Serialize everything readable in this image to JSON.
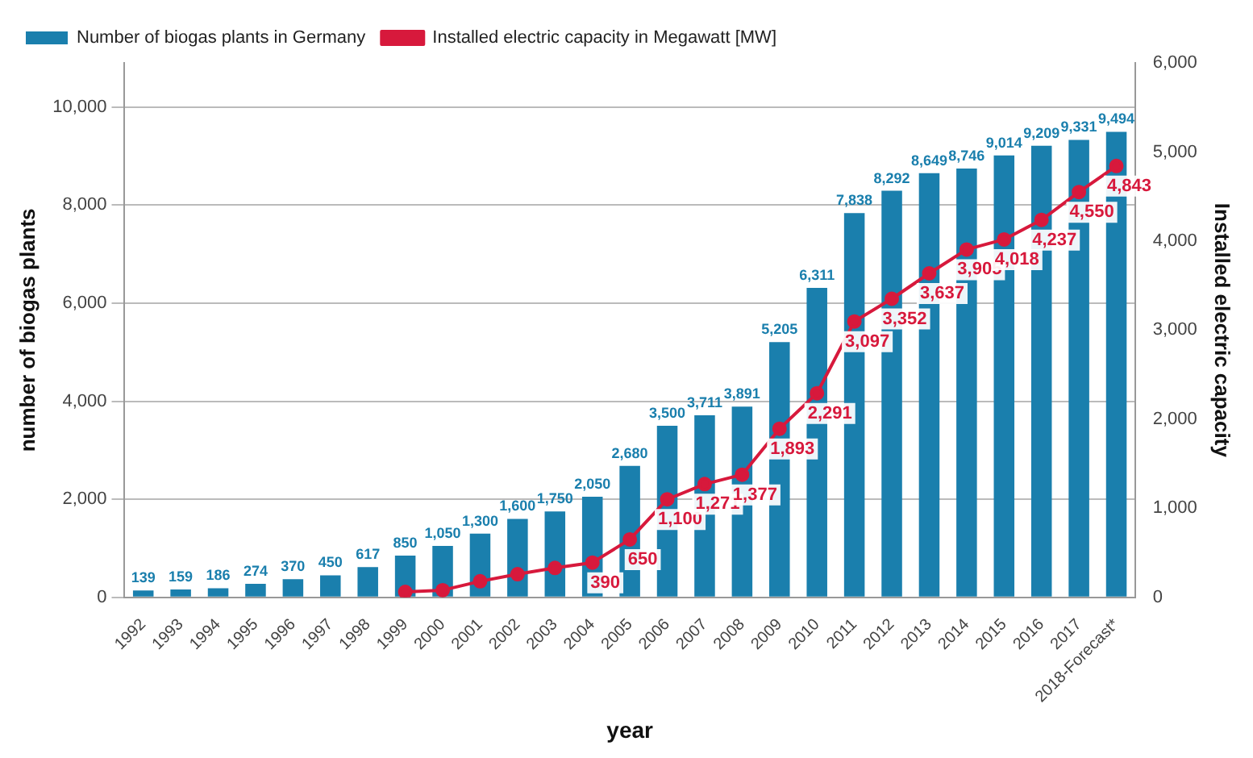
{
  "chart_data": {
    "type": "bar",
    "xlabel": "year",
    "ylabel": "number of biogas plants",
    "y2label": "Installed electric capacity",
    "categories": [
      "1992",
      "1993",
      "1994",
      "1995",
      "1996",
      "1997",
      "1998",
      "1999",
      "2000",
      "2001",
      "2002",
      "2003",
      "2004",
      "2005",
      "2006",
      "2007",
      "2008",
      "2009",
      "2010",
      "2011",
      "2012",
      "2013",
      "2014",
      "2015",
      "2016",
      "2017",
      "2018-Forecast*"
    ],
    "series": [
      {
        "name": "Number of biogas plants in Germany",
        "color": "#1a7fad",
        "values": [
          139,
          159,
          186,
          274,
          370,
          450,
          617,
          850,
          1050,
          1300,
          1600,
          1750,
          2050,
          2680,
          3500,
          3711,
          3891,
          5205,
          6311,
          7838,
          8292,
          8649,
          8746,
          9014,
          9209,
          9331,
          9494
        ],
        "value_labels": [
          "139",
          "159",
          "186",
          "274",
          "370",
          "450",
          "617",
          "850",
          "1,050",
          "1,300",
          "1,600",
          "1,750",
          "2,050",
          "2,680",
          "3,500",
          "3,711",
          "3,891",
          "5,205",
          "6,311",
          "7,838",
          "8,292",
          "8,649",
          "8,746",
          "9,014",
          "9,209",
          "9,331",
          "9,494"
        ]
      },
      {
        "name": "Installed electric capacity in Megawatt [MW]",
        "type": "line",
        "axis": "y2",
        "color": "#d7193c",
        "marker": "circle",
        "values": [
          null,
          null,
          null,
          null,
          null,
          null,
          null,
          60,
          80,
          180,
          260,
          330,
          390,
          650,
          1100,
          1271,
          1377,
          1893,
          2291,
          3097,
          3352,
          3637,
          3905,
          4018,
          4237,
          4550,
          4843
        ],
        "value_labels": [
          null,
          null,
          null,
          null,
          null,
          null,
          null,
          null,
          null,
          null,
          null,
          null,
          "390",
          "650",
          "1,100",
          "1,271",
          "1,377",
          "1,893",
          "2,291",
          "3,097",
          "3,352",
          "3,637",
          "3,905",
          "4,018",
          "4,237",
          "4,550",
          "4,843"
        ]
      }
    ],
    "ylim": [
      0,
      10900
    ],
    "yticks": [
      {
        "value": 0,
        "label": "0"
      },
      {
        "value": 2000,
        "label": "2,000"
      },
      {
        "value": 4000,
        "label": "4,000"
      },
      {
        "value": 6000,
        "label": "6,000"
      },
      {
        "value": 8000,
        "label": "8,000"
      },
      {
        "value": 10000,
        "label": "10,000"
      }
    ],
    "y2lim": [
      0,
      6000
    ],
    "y2ticks": [
      {
        "value": 0,
        "label": "0"
      },
      {
        "value": 1000,
        "label": "1,000"
      },
      {
        "value": 2000,
        "label": "2,000"
      },
      {
        "value": 3000,
        "label": "3,000"
      },
      {
        "value": 4000,
        "label": "4,000"
      },
      {
        "value": 5000,
        "label": "5,000"
      },
      {
        "value": 6000,
        "label": "6,000"
      }
    ],
    "grid": "y",
    "legend": "top left"
  }
}
